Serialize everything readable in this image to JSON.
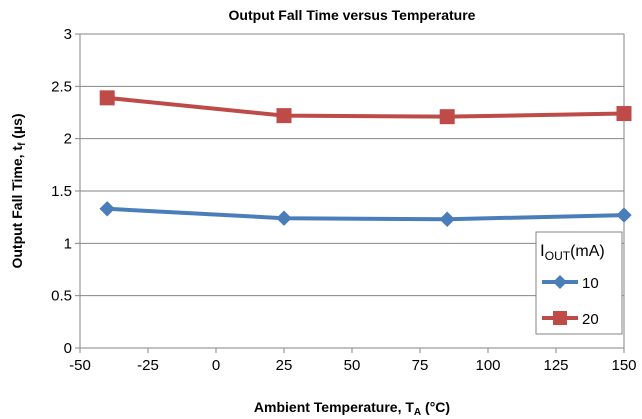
{
  "chart_data": {
    "type": "line",
    "title": "Output Fall Time versus Temperature",
    "xlabel": "Ambient Temperature, T",
    "xlabel_sub": "A",
    "xlabel_suffix": " (°C)",
    "ylabel": "Output Fall Time, t",
    "ylabel_sub": "f",
    "ylabel_suffix": " (µs)",
    "xlim": [
      -50,
      150
    ],
    "ylim": [
      0,
      3
    ],
    "xticks": [
      -50,
      -25,
      0,
      25,
      50,
      75,
      100,
      125,
      150
    ],
    "xtick_labels": [
      "-50",
      "-25",
      "0",
      "25",
      "50",
      "75",
      "100",
      "125",
      "150"
    ],
    "yticks": [
      0,
      0.5,
      1,
      1.5,
      2,
      2.5,
      3
    ],
    "ytick_labels": [
      "0",
      "0.5",
      "1",
      "1.5",
      "2",
      "2.5",
      "3"
    ],
    "grid": "horizontal",
    "legend": {
      "title_main": "I",
      "title_sub": "OUT",
      "title_suffix": "(mA)",
      "placement": "bottom-right"
    },
    "series": [
      {
        "name": "10",
        "color": "#4a7ebb",
        "marker": "diamond",
        "x": [
          -40,
          25,
          85,
          150
        ],
        "y": [
          1.33,
          1.24,
          1.23,
          1.27
        ]
      },
      {
        "name": "20",
        "color": "#be4b48",
        "marker": "square",
        "x": [
          -40,
          25,
          85,
          150
        ],
        "y": [
          2.39,
          2.22,
          2.21,
          2.24
        ]
      }
    ]
  }
}
